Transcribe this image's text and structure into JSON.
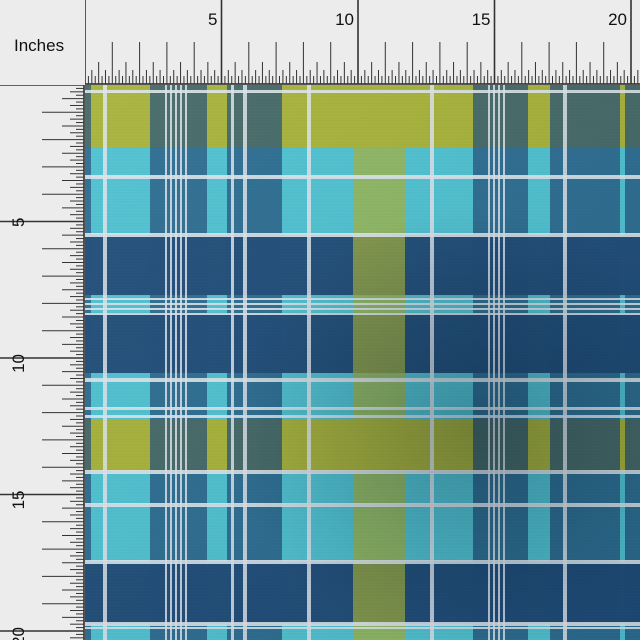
{
  "ruler": {
    "unit_label": "Inches",
    "top_numbers": [
      "5",
      "10",
      "15",
      "20"
    ],
    "left_numbers": [
      "5",
      "10",
      "15",
      "20"
    ]
  },
  "fabric": {
    "pattern": "plaid",
    "colors": {
      "navy": "#1f4e7a",
      "turquoise": "#4fc3d3",
      "lime": "#a8b43a",
      "white_stripe": "#dfe8ee",
      "dark_overlap": "#2a5a60"
    }
  }
}
